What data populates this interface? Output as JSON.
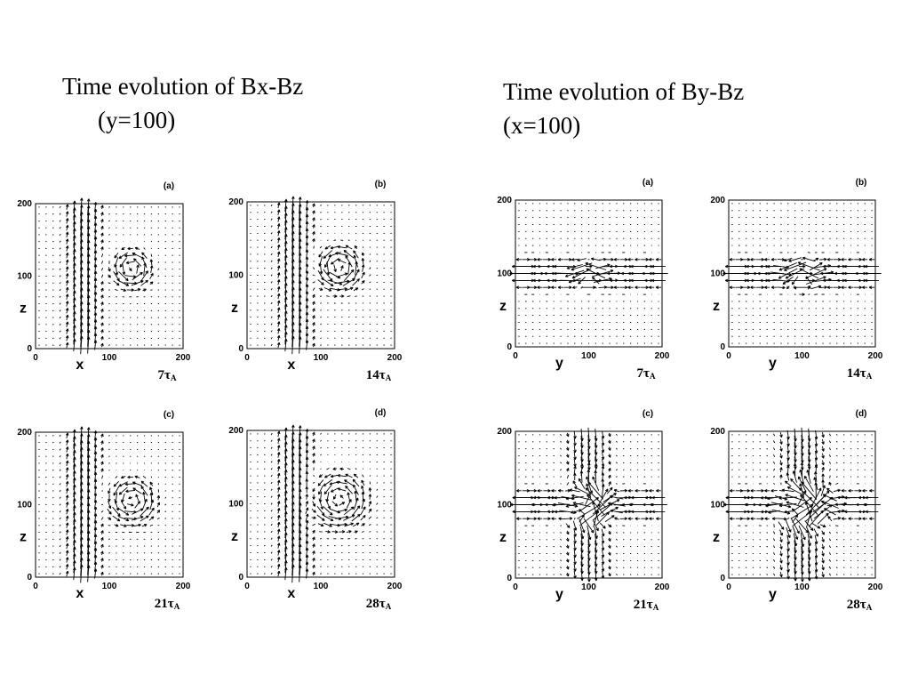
{
  "titles": {
    "left_line1": "Time evolution of Bx-Bz",
    "left_line2": "(y=100)",
    "right_line1": "Time evolution of By-Bz",
    "right_line2": "(x=100)"
  },
  "chart_data": [
    {
      "type": "vector_field",
      "group": "Bx-Bz",
      "field": "Bx",
      "label": "(a)",
      "time": "7",
      "time_unit": "τA",
      "xlabel": "x",
      "ylabel": "z",
      "xlim": [
        0,
        200
      ],
      "ylim": [
        0,
        200
      ],
      "xticks": [
        "0",
        "100",
        "200"
      ],
      "yticks": [
        "0",
        "100",
        "200"
      ],
      "sheet": {
        "axis": "vertical",
        "center": 65,
        "halfwidth": 20,
        "strength": 1.3
      },
      "vortex": {
        "x": 130,
        "z": 110,
        "radius": 28,
        "strength": 0.9
      }
    },
    {
      "type": "vector_field",
      "group": "Bx-Bz",
      "field": "Bx",
      "label": "(b)",
      "time": "14",
      "time_unit": "τA",
      "xlabel": "x",
      "ylabel": "z",
      "xlim": [
        0,
        200
      ],
      "ylim": [
        0,
        200
      ],
      "xticks": [
        "0",
        "100",
        "200"
      ],
      "yticks": [
        "0",
        "100",
        "200"
      ],
      "sheet": {
        "axis": "vertical",
        "center": 65,
        "halfwidth": 20,
        "strength": 1.3
      },
      "vortex": {
        "x": 125,
        "z": 110,
        "radius": 32,
        "strength": 1.0
      }
    },
    {
      "type": "vector_field",
      "group": "Bx-Bz",
      "field": "Bx",
      "label": "(c)",
      "time": "21",
      "time_unit": "τA",
      "xlabel": "x",
      "ylabel": "z",
      "xlim": [
        0,
        200
      ],
      "ylim": [
        0,
        200
      ],
      "xticks": [
        "0",
        "100",
        "200"
      ],
      "yticks": [
        "0",
        "100",
        "200"
      ],
      "sheet": {
        "axis": "vertical",
        "center": 65,
        "halfwidth": 20,
        "strength": 1.3
      },
      "vortex": {
        "x": 130,
        "z": 105,
        "radius": 34,
        "strength": 0.85
      }
    },
    {
      "type": "vector_field",
      "group": "Bx-Bz",
      "field": "Bx",
      "label": "(d)",
      "time": "28",
      "time_unit": "τA",
      "xlabel": "x",
      "ylabel": "z",
      "xlim": [
        0,
        200
      ],
      "ylim": [
        0,
        200
      ],
      "xticks": [
        "0",
        "100",
        "200"
      ],
      "yticks": [
        "0",
        "100",
        "200"
      ],
      "sheet": {
        "axis": "vertical",
        "center": 65,
        "halfwidth": 20,
        "strength": 1.3
      },
      "vortex": {
        "x": 125,
        "z": 105,
        "radius": 40,
        "strength": 0.85
      }
    },
    {
      "type": "vector_field",
      "group": "By-Bz",
      "field": "By",
      "label": "(a)",
      "time": "7",
      "time_unit": "τA",
      "xlabel": "y",
      "ylabel": "z",
      "xlim": [
        0,
        200
      ],
      "ylim": [
        0,
        200
      ],
      "xticks": [
        "0",
        "100",
        "200"
      ],
      "yticks": [
        "0",
        "100",
        "200"
      ],
      "sheet": {
        "axis": "horizontal",
        "center": 100,
        "halfwidth": 18,
        "strength": 1.4
      },
      "vortex": {
        "x": 100,
        "z": 100,
        "radius": 20,
        "strength": 0.7
      }
    },
    {
      "type": "vector_field",
      "group": "By-Bz",
      "field": "By",
      "label": "(b)",
      "time": "14",
      "time_unit": "τA",
      "xlabel": "y",
      "ylabel": "z",
      "xlim": [
        0,
        200
      ],
      "ylim": [
        0,
        200
      ],
      "xticks": [
        "0",
        "100",
        "200"
      ],
      "yticks": [
        "0",
        "100",
        "200"
      ],
      "sheet": {
        "axis": "horizontal",
        "center": 100,
        "halfwidth": 18,
        "strength": 1.4
      },
      "vortex": {
        "x": 100,
        "z": 100,
        "radius": 24,
        "strength": 0.8
      }
    },
    {
      "type": "vector_field",
      "group": "By-Bz",
      "field": "By",
      "label": "(c)",
      "time": "21",
      "time_unit": "τA",
      "xlabel": "y",
      "ylabel": "z",
      "xlim": [
        0,
        200
      ],
      "ylim": [
        0,
        200
      ],
      "xticks": [
        "0",
        "100",
        "200"
      ],
      "yticks": [
        "0",
        "100",
        "200"
      ],
      "sheet": {
        "axis": "horizontal",
        "center": 100,
        "halfwidth": 18,
        "strength": 1.3
      },
      "cross": {
        "axis": "vertical",
        "center": 100,
        "halfwidth": 24,
        "strength": 1.0
      },
      "vortex": {
        "x": 100,
        "z": 100,
        "radius": 30,
        "strength": 0.8
      }
    },
    {
      "type": "vector_field",
      "group": "By-Bz",
      "field": "By",
      "label": "(d)",
      "time": "28",
      "time_unit": "τA",
      "xlabel": "y",
      "ylabel": "z",
      "xlim": [
        0,
        200
      ],
      "ylim": [
        0,
        200
      ],
      "xticks": [
        "0",
        "100",
        "200"
      ],
      "yticks": [
        "0",
        "100",
        "200"
      ],
      "sheet": {
        "axis": "horizontal",
        "center": 100,
        "halfwidth": 18,
        "strength": 1.3
      },
      "cross": {
        "axis": "vertical",
        "center": 100,
        "halfwidth": 28,
        "strength": 1.0
      },
      "vortex": {
        "x": 100,
        "z": 100,
        "radius": 36,
        "strength": 0.8
      }
    }
  ]
}
